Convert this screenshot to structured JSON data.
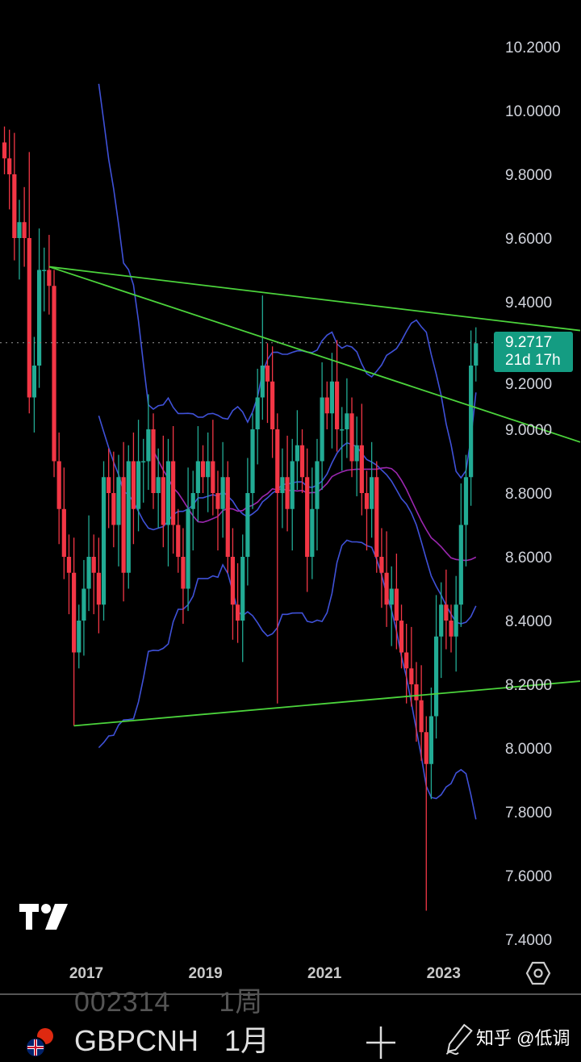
{
  "chart_data": {
    "type": "candlestick",
    "symbol": "GBPCNH",
    "interval": "1月",
    "start_month": "2015-08",
    "close": [
      9.85,
      9.8,
      9.6,
      9.65,
      9.6,
      9.1,
      9.2,
      9.5,
      9.5,
      9.45,
      8.9,
      8.75,
      8.6,
      8.55,
      8.3,
      8.4,
      8.5,
      8.6,
      8.55,
      8.45,
      8.85,
      8.8,
      8.7,
      8.85,
      8.55,
      8.9,
      8.75,
      8.9,
      8.9,
      9.0,
      8.8,
      8.85,
      8.7,
      8.9,
      8.7,
      8.6,
      8.5,
      8.75,
      8.8,
      8.9,
      8.85,
      8.9,
      8.8,
      8.75,
      8.85,
      8.6,
      8.45,
      8.4,
      8.6,
      8.8,
      9.0,
      9.1,
      9.2,
      9.15,
      9.0,
      8.8,
      8.85,
      8.75,
      8.9,
      8.95,
      8.85,
      8.6,
      8.75,
      8.9,
      9.1,
      9.05,
      9.15,
      9.0,
      9.0,
      9.05,
      8.9,
      8.95,
      8.8,
      8.75,
      8.85,
      8.6,
      8.55,
      8.45,
      8.5,
      8.4,
      8.3,
      8.25,
      8.2,
      8.15,
      8.05,
      7.95,
      8.1,
      8.35,
      8.45,
      8.4,
      8.35,
      8.45,
      8.7,
      8.85,
      9.2,
      9.27
    ],
    "notable_extremes": [
      {
        "month": "2016-01",
        "high": 9.87
      },
      {
        "month": "2016-10",
        "low": 8.07
      },
      {
        "month": "2019-12",
        "high": 9.42
      },
      {
        "month": "2020-03",
        "low": 8.14
      },
      {
        "month": "2022-09",
        "low": 7.49
      }
    ],
    "indicators": [
      "Bollinger Bands (20)",
      "Moving average"
    ],
    "trendlines": [
      {
        "from": [
          "2016-05",
          9.51
        ],
        "to": [
          "2025-04",
          9.31
        ]
      },
      {
        "from": [
          "2016-05",
          9.51
        ],
        "to": [
          "2025-04",
          8.96
        ]
      },
      {
        "from": [
          "2016-10",
          8.07
        ],
        "to": [
          "2025-04",
          8.21
        ]
      }
    ],
    "y_ticks": [
      "10.2000",
      "10.0000",
      "9.8000",
      "9.6000",
      "9.4000",
      "9.2000",
      "9.0000",
      "8.8000",
      "8.6000",
      "8.4000",
      "8.2000",
      "8.0000",
      "7.8000",
      "7.6000",
      "7.4000"
    ],
    "x_ticks": [
      "2017",
      "2019",
      "2021",
      "2023"
    ],
    "ylim": [
      7.4,
      10.2
    ],
    "grid": false,
    "colors": {
      "up": "#22ab94",
      "down": "#f23645",
      "bands": "#3f51d8",
      "ma": "#9c27b0",
      "trendline": "#4cd43c",
      "background": "#000000"
    }
  },
  "last_price": {
    "value": "9.2717",
    "countdown": "21d 17h"
  },
  "faded_row": {
    "code": "002314",
    "interval": "1周"
  },
  "toolbar": {
    "symbol": "GBPCNH",
    "interval": "1月",
    "watermark": "知乎 @低调"
  },
  "icons": {
    "logo": "tradingview-logo",
    "settings": "hexagon-settings-icon",
    "add": "plus-icon",
    "draw": "pencil-icon",
    "flag": "gbp-cny-flag-icon"
  }
}
